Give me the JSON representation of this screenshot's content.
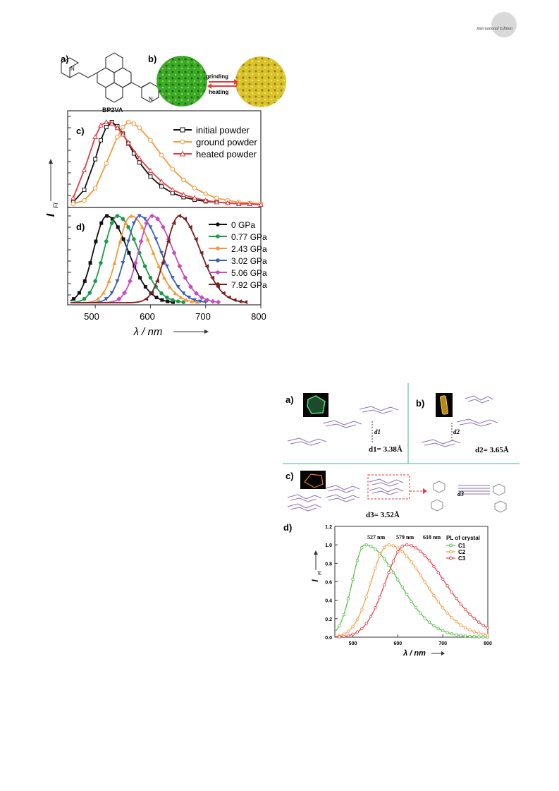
{
  "header": {
    "journal_edition": "International Edition"
  },
  "figure1": {
    "panel_labels": {
      "a": "a)",
      "b": "b)",
      "c": "c)",
      "d": "d)"
    },
    "molecule_name": "BP2VA",
    "atom_label": "N",
    "grinding_label": "grinding",
    "heating_label": "heating",
    "ylabel": "I",
    "ylabel_sub": "Fl",
    "xlabel": "λ / nm",
    "x_ticks": [
      "500",
      "600",
      "700",
      "800"
    ],
    "colors": {
      "initial": "#111111",
      "ground": "#f39a3a",
      "heated": "#e8383d",
      "p0": "#111111",
      "p077": "#1f9a4a",
      "p243": "#f39a3a",
      "p302": "#3a5fb5",
      "p506": "#c64cc0",
      "p792": "#7a1f1f",
      "powder_green": "#3caa28",
      "powder_yellow": "#d8c22c"
    }
  },
  "figure2": {
    "panel_labels": {
      "a": "a)",
      "b": "b)",
      "c": "c)",
      "d": "d)"
    },
    "d1_label": "d1",
    "d2_label": "d2",
    "d3_label": "d3",
    "d1_text": "d1= 3.38Å",
    "d2_text": "d2= 3.65Å",
    "d3_text": "d3= 3.52Å",
    "ylabel": "I",
    "ylabel_sub": "Fl",
    "xlabel": "λ / nm",
    "legend_title": "PL of crystal",
    "peak_labels": [
      "527 nm",
      "579 nm",
      "618 nm"
    ],
    "x_ticks": [
      "500",
      "600",
      "700",
      "800"
    ],
    "y_ticks": [
      "0.0",
      "0.2",
      "0.4",
      "0.6",
      "0.8",
      "1.0",
      "1.2"
    ],
    "colors": {
      "c1": "#4cbb3c",
      "c2": "#f39a3a",
      "c3": "#e8383d",
      "divider": "#6cc6a0",
      "mol": "#8a6fb5"
    }
  },
  "chart_data": [
    {
      "type": "line",
      "panel": "c",
      "xlabel": "λ / nm",
      "ylabel": "I Fl",
      "xlim": [
        450,
        800
      ],
      "series": [
        {
          "name": "initial powder",
          "peak": 528,
          "x": [
            460,
            480,
            500,
            510,
            520,
            530,
            540,
            550,
            560,
            570,
            580,
            600,
            620,
            640,
            660,
            680,
            700,
            720,
            740,
            760,
            780,
            800
          ],
          "values": [
            0.03,
            0.18,
            0.55,
            0.78,
            0.94,
            1.0,
            0.95,
            0.86,
            0.74,
            0.62,
            0.51,
            0.34,
            0.22,
            0.14,
            0.09,
            0.06,
            0.04,
            0.03,
            0.02,
            0.01,
            0.01,
            0.0
          ]
        },
        {
          "name": "ground powder",
          "peak": 562,
          "x": [
            460,
            480,
            500,
            520,
            540,
            550,
            560,
            570,
            580,
            600,
            620,
            640,
            660,
            680,
            700,
            720,
            740,
            760,
            780,
            800
          ],
          "values": [
            0.01,
            0.05,
            0.2,
            0.5,
            0.82,
            0.94,
            1.0,
            0.98,
            0.93,
            0.78,
            0.6,
            0.43,
            0.3,
            0.2,
            0.13,
            0.08,
            0.05,
            0.03,
            0.02,
            0.01
          ]
        },
        {
          "name": "heated powder",
          "peak": 522,
          "x": [
            460,
            480,
            500,
            510,
            520,
            530,
            540,
            550,
            560,
            580,
            600,
            620,
            640,
            660,
            680,
            700,
            720,
            740,
            760,
            780,
            800
          ],
          "values": [
            0.08,
            0.42,
            0.82,
            0.96,
            1.0,
            0.98,
            0.93,
            0.85,
            0.75,
            0.56,
            0.41,
            0.28,
            0.18,
            0.12,
            0.08,
            0.05,
            0.03,
            0.02,
            0.01,
            0.01,
            0.0
          ]
        }
      ]
    },
    {
      "type": "line",
      "panel": "d",
      "xlabel": "λ / nm",
      "ylabel": "I Fl",
      "xlim": [
        450,
        800
      ],
      "series": [
        {
          "name": "0 GPa",
          "peak": 521
        },
        {
          "name": "0.77 GPa",
          "peak": 540
        },
        {
          "name": "2.43 GPa",
          "peak": 565
        },
        {
          "name": "3.02 GPa",
          "peak": 580
        },
        {
          "name": "5.06 GPa",
          "peak": 603
        },
        {
          "name": "7.92 GPa",
          "peak": 652
        }
      ]
    },
    {
      "type": "line",
      "panel": "d",
      "title": "PL of crystal",
      "xlabel": "λ / nm",
      "ylabel": "I Fl",
      "xlim": [
        460,
        800
      ],
      "ylim": [
        0,
        1.2
      ],
      "series": [
        {
          "name": "C1",
          "peak": 527,
          "width_left": 28,
          "width_right": 75
        },
        {
          "name": "C2",
          "peak": 579,
          "width_left": 38,
          "width_right": 80
        },
        {
          "name": "C3",
          "peak": 618,
          "width_left": 45,
          "width_right": 85
        }
      ]
    }
  ]
}
